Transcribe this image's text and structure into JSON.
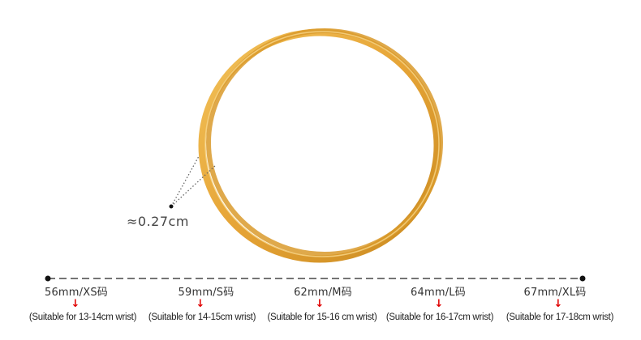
{
  "product": {
    "name": "gold bangle",
    "color": "#e3a43a"
  },
  "thickness_label": "≈0.27cm",
  "sizes": [
    {
      "size": "56mm/XS码",
      "note": "(Suitable for 13-14cm wrist)"
    },
    {
      "size": "59mm/S码",
      "note": "(Suitable for 14-15cm wrist)"
    },
    {
      "size": "62mm/M码",
      "note": "(Suitable for 15-16 cm wrist)"
    },
    {
      "size": "64mm/L码",
      "note": "(Suitable for 16-17cm wrist)"
    },
    {
      "size": "67mm/XL码",
      "note": "(Suitable for 17-18cm wrist)"
    }
  ],
  "arrow_glyph": "↓",
  "arrow_color": "#e00000"
}
